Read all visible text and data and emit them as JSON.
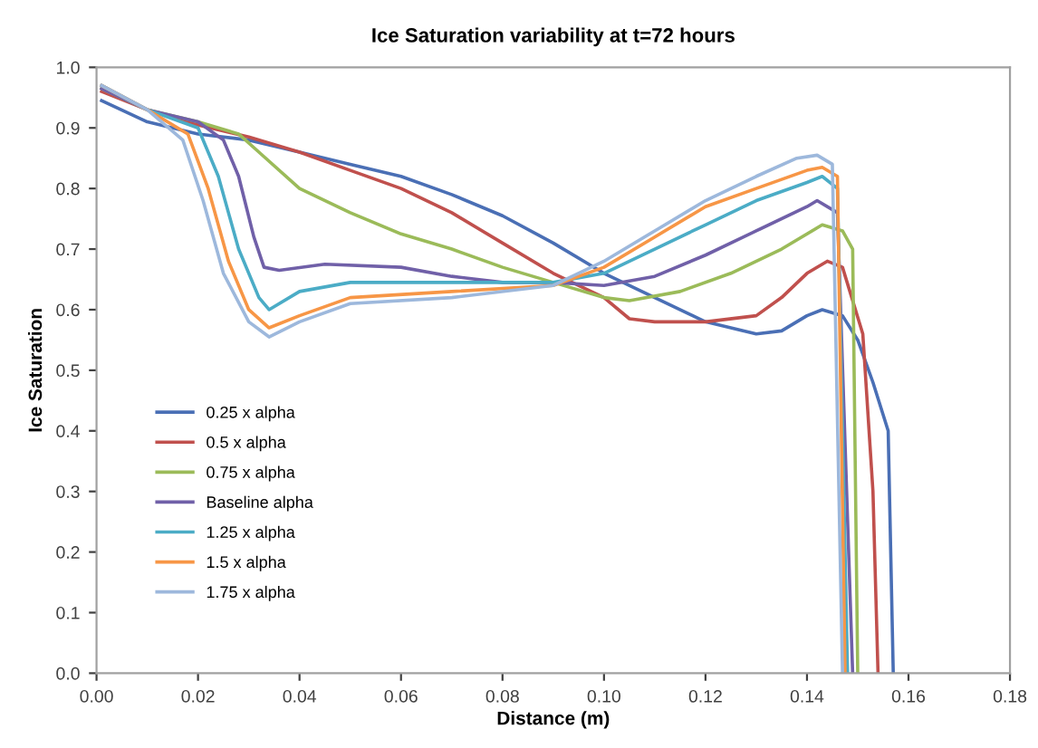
{
  "chart_data": {
    "type": "line",
    "title": "Ice Saturation variability at t=72 hours",
    "xlabel": "Distance (m)",
    "ylabel": "Ice Saturation",
    "xlim": [
      0,
      0.18
    ],
    "ylim": [
      0,
      1.0
    ],
    "xticks": [
      {
        "value": 0,
        "label": "0.00"
      },
      {
        "value": 0.02,
        "label": "0.02"
      },
      {
        "value": 0.04,
        "label": "0.04"
      },
      {
        "value": 0.06,
        "label": "0.06"
      },
      {
        "value": 0.08,
        "label": "0.08"
      },
      {
        "value": 0.1,
        "label": "0.10"
      },
      {
        "value": 0.12,
        "label": "0.12"
      },
      {
        "value": 0.14,
        "label": "0.14"
      },
      {
        "value": 0.16,
        "label": "0.16"
      },
      {
        "value": 0.18,
        "label": "0.18"
      }
    ],
    "yticks": [
      {
        "value": 0,
        "label": "0.0"
      },
      0.1,
      0.2,
      0.3,
      0.4,
      0.5,
      0.6,
      0.7,
      0.8,
      0.9,
      {
        "value": 1.0,
        "label": "1.0"
      }
    ],
    "grid": false,
    "legend": "left",
    "marker": "none",
    "line_style": "solid",
    "series": [
      {
        "name": "0.25 x alpha",
        "color": "#4a6fb5",
        "x": [
          0.001,
          0.01,
          0.02,
          0.03,
          0.04,
          0.05,
          0.06,
          0.07,
          0.08,
          0.09,
          0.1,
          0.11,
          0.12,
          0.13,
          0.135,
          0.14,
          0.143,
          0.147,
          0.15,
          0.153,
          0.156,
          0.157
        ],
        "values": [
          0.945,
          0.91,
          0.89,
          0.88,
          0.86,
          0.84,
          0.82,
          0.79,
          0.755,
          0.71,
          0.66,
          0.62,
          0.58,
          0.56,
          0.565,
          0.59,
          0.6,
          0.59,
          0.55,
          0.48,
          0.4,
          0.0
        ]
      },
      {
        "name": "0.5 x alpha",
        "color": "#c0504d",
        "x": [
          0.001,
          0.01,
          0.02,
          0.03,
          0.04,
          0.05,
          0.06,
          0.07,
          0.08,
          0.09,
          0.1,
          0.105,
          0.11,
          0.12,
          0.13,
          0.135,
          0.14,
          0.144,
          0.147,
          0.151,
          0.153,
          0.154
        ],
        "values": [
          0.96,
          0.93,
          0.905,
          0.885,
          0.86,
          0.83,
          0.8,
          0.76,
          0.71,
          0.66,
          0.62,
          0.585,
          0.58,
          0.58,
          0.59,
          0.62,
          0.66,
          0.68,
          0.67,
          0.56,
          0.3,
          0.0
        ]
      },
      {
        "name": "0.75 x alpha",
        "color": "#9bbb59",
        "x": [
          0.001,
          0.01,
          0.02,
          0.028,
          0.032,
          0.04,
          0.05,
          0.06,
          0.07,
          0.08,
          0.09,
          0.1,
          0.105,
          0.115,
          0.125,
          0.135,
          0.143,
          0.147,
          0.149,
          0.15
        ],
        "values": [
          0.965,
          0.93,
          0.91,
          0.89,
          0.86,
          0.8,
          0.76,
          0.725,
          0.7,
          0.67,
          0.645,
          0.62,
          0.615,
          0.63,
          0.66,
          0.7,
          0.74,
          0.73,
          0.7,
          0.0
        ]
      },
      {
        "name": "Baseline alpha",
        "color": "#7060a8",
        "x": [
          0.001,
          0.01,
          0.02,
          0.025,
          0.028,
          0.031,
          0.033,
          0.036,
          0.045,
          0.06,
          0.07,
          0.08,
          0.09,
          0.1,
          0.11,
          0.12,
          0.13,
          0.14,
          0.142,
          0.146,
          0.149
        ],
        "values": [
          0.965,
          0.93,
          0.91,
          0.88,
          0.82,
          0.72,
          0.67,
          0.665,
          0.675,
          0.67,
          0.655,
          0.645,
          0.645,
          0.64,
          0.655,
          0.69,
          0.73,
          0.77,
          0.78,
          0.76,
          0.0
        ]
      },
      {
        "name": "1.25 x alpha",
        "color": "#4bacc6",
        "x": [
          0.001,
          0.01,
          0.02,
          0.024,
          0.028,
          0.032,
          0.034,
          0.04,
          0.05,
          0.07,
          0.09,
          0.1,
          0.11,
          0.12,
          0.13,
          0.14,
          0.143,
          0.146,
          0.148
        ],
        "values": [
          0.97,
          0.93,
          0.9,
          0.82,
          0.7,
          0.62,
          0.6,
          0.63,
          0.645,
          0.645,
          0.645,
          0.66,
          0.7,
          0.74,
          0.78,
          0.81,
          0.82,
          0.8,
          0.0
        ]
      },
      {
        "name": "1.5 x alpha",
        "color": "#f79646",
        "x": [
          0.001,
          0.01,
          0.018,
          0.022,
          0.026,
          0.03,
          0.034,
          0.04,
          0.05,
          0.07,
          0.09,
          0.1,
          0.11,
          0.12,
          0.13,
          0.14,
          0.143,
          0.146,
          0.1475
        ],
        "values": [
          0.97,
          0.93,
          0.89,
          0.8,
          0.68,
          0.6,
          0.57,
          0.59,
          0.62,
          0.63,
          0.64,
          0.67,
          0.72,
          0.77,
          0.8,
          0.83,
          0.835,
          0.82,
          0.0
        ]
      },
      {
        "name": "1.75 x alpha",
        "color": "#9db8dc",
        "x": [
          0.001,
          0.01,
          0.017,
          0.021,
          0.025,
          0.03,
          0.034,
          0.04,
          0.05,
          0.07,
          0.09,
          0.1,
          0.11,
          0.12,
          0.13,
          0.138,
          0.142,
          0.145,
          0.147
        ],
        "values": [
          0.97,
          0.93,
          0.88,
          0.78,
          0.66,
          0.58,
          0.555,
          0.58,
          0.61,
          0.62,
          0.64,
          0.68,
          0.73,
          0.78,
          0.82,
          0.85,
          0.855,
          0.84,
          0.0
        ]
      }
    ]
  }
}
